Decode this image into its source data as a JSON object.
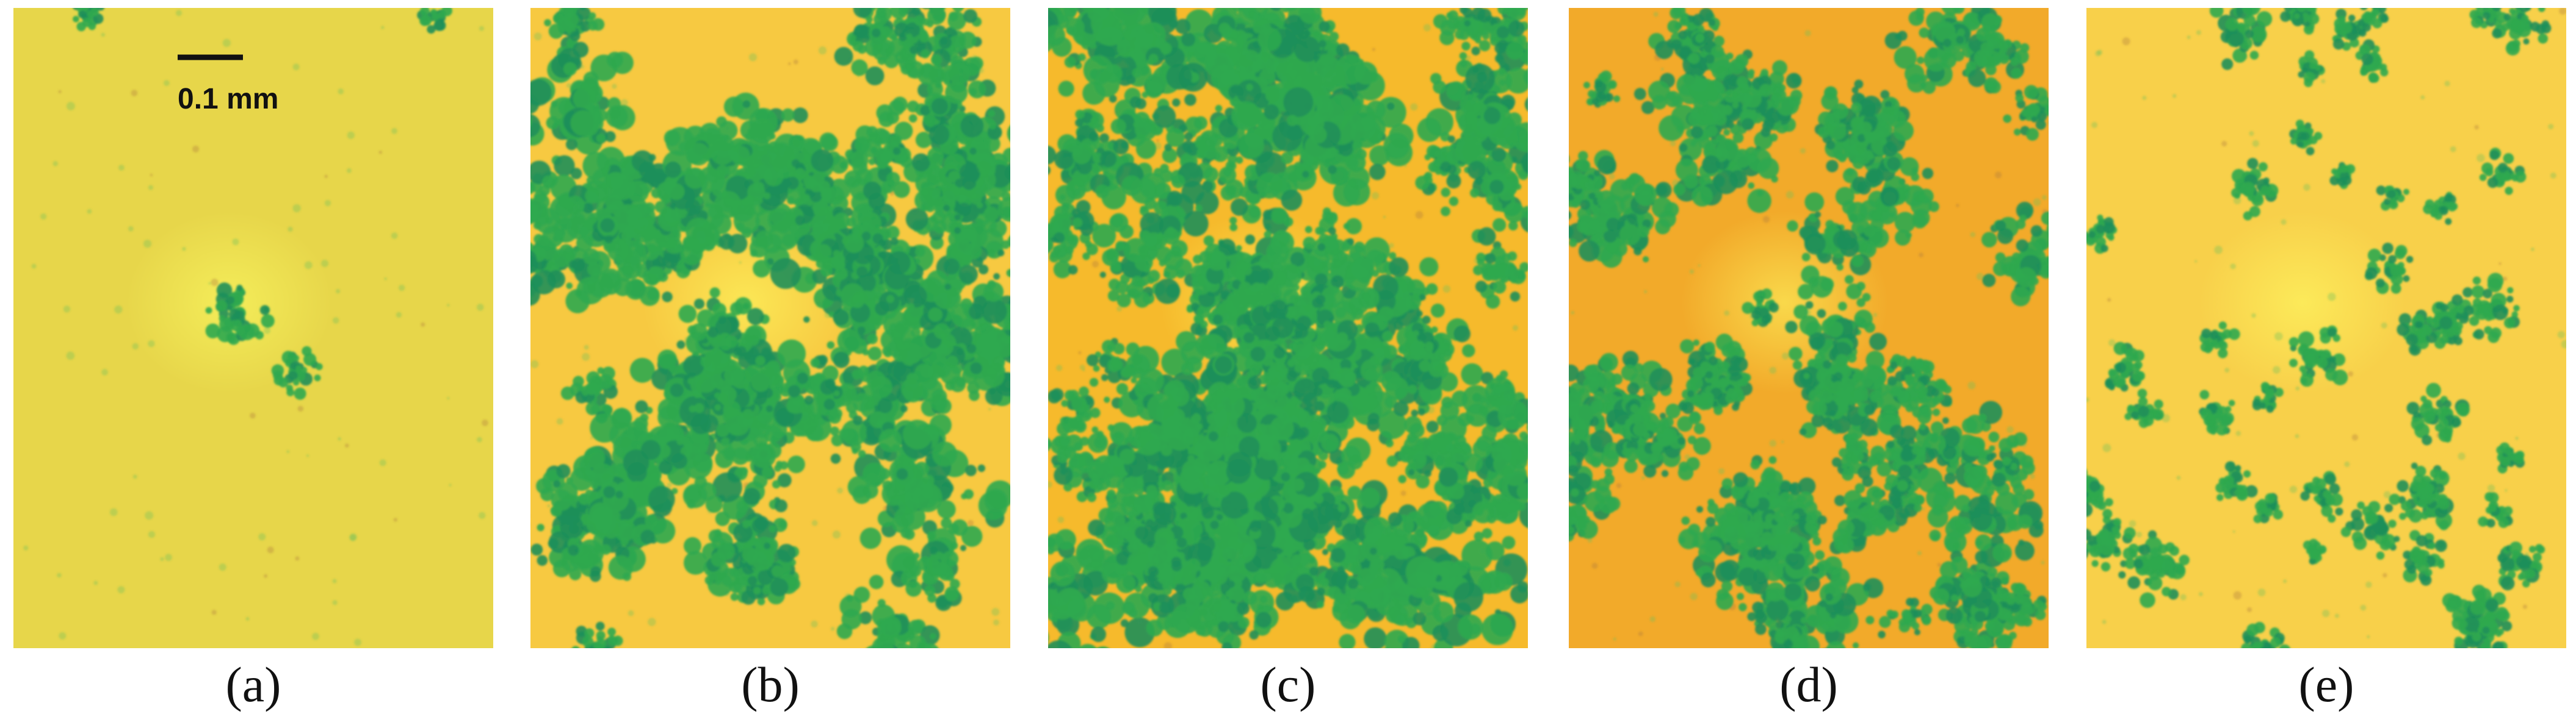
{
  "scale_bar": {
    "label": "0.1 mm"
  },
  "panels": [
    {
      "label": "(a)"
    },
    {
      "label": "(b)"
    },
    {
      "label": "(c)"
    },
    {
      "label": "(d)"
    },
    {
      "label": "(e)"
    }
  ]
}
